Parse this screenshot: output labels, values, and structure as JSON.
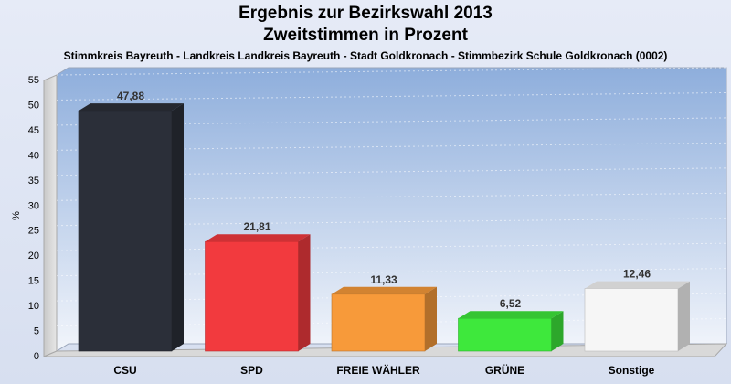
{
  "chart_data": {
    "type": "bar",
    "title": "Ergebnis zur Bezirkswahl 2013",
    "title2": "Zweitstimmen in Prozent",
    "subtitle": "Stimmkreis Bayreuth - Landkreis Landkreis Bayreuth - Stadt Goldkronach - Stimmbezirk Schule Goldkronach (0002)",
    "ylabel": "%",
    "ylim": [
      0,
      55
    ],
    "yticks": [
      0,
      5,
      10,
      15,
      20,
      25,
      30,
      35,
      40,
      45,
      50,
      55
    ],
    "categories": [
      "CSU",
      "SPD",
      "FREIE WÄHLER",
      "GRÜNE",
      "Sonstige"
    ],
    "values": [
      47.88,
      21.81,
      11.33,
      6.52,
      12.46
    ],
    "value_labels": [
      "47,88",
      "21,81",
      "11,33",
      "6,52",
      "12,46"
    ],
    "colors": [
      "#2b2f39",
      "#f23a3e",
      "#f79a3a",
      "#3ee83c",
      "#f6f6f6"
    ],
    "grid": true,
    "legend": "none"
  }
}
